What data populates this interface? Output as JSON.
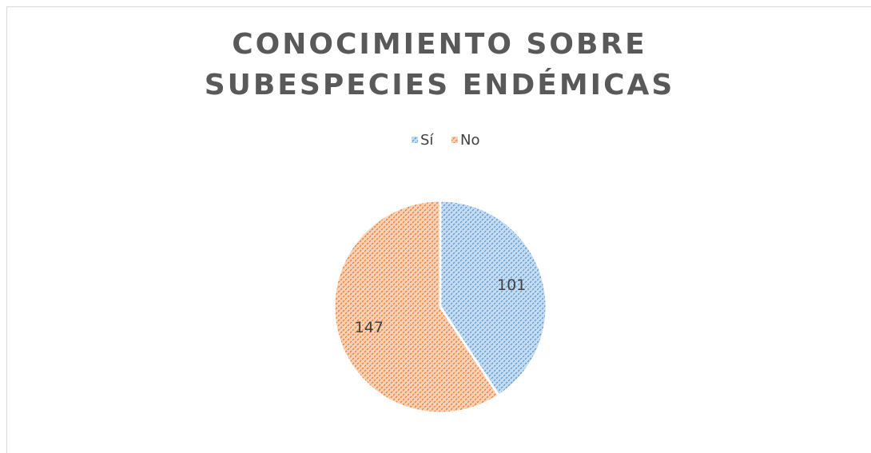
{
  "chart_data": {
    "type": "pie",
    "title": "CONOCIMIENTO SOBRE SUBESPECIES ENDÉMICAS",
    "categories": [
      "Sí",
      "No"
    ],
    "values": [
      101,
      147
    ],
    "colors": [
      "#5b9bd5",
      "#ed7d31"
    ],
    "legend": "top"
  }
}
